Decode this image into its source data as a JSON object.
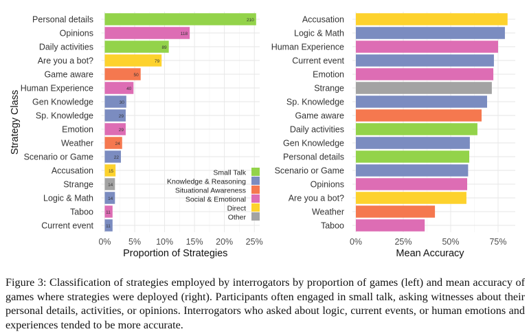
{
  "colors": {
    "Small Talk": "#93d34a",
    "Knowledge & Reasoning": "#7b8cc0",
    "Situational Awareness": "#f5784f",
    "Social & Emotional": "#dd6db4",
    "Direct": "#fdd22d",
    "Other": "#a3a3a3"
  },
  "chart_data": [
    {
      "type": "bar",
      "orientation": "horizontal",
      "title": "",
      "xlabel": "Proportion of Strategies",
      "ylabel": "Strategy Class",
      "xlim": [
        0,
        0.26
      ],
      "xticks": [
        0,
        0.05,
        0.1,
        0.15,
        0.2,
        0.25
      ],
      "xtick_labels": [
        "0%",
        "5%",
        "10%",
        "15%",
        "20%",
        "25%"
      ],
      "grid": true,
      "legend": {
        "placement": "bottom-right",
        "entries": [
          "Small Talk",
          "Knowledge & Reasoning",
          "Situational Awareness",
          "Social & Emotional",
          "Direct",
          "Other"
        ]
      },
      "categories": [
        "Personal details",
        "Opinions",
        "Daily activities",
        "Are you a bot?",
        "Game aware",
        "Human Experience",
        "Gen Knowledge",
        "Sp. Knowledge",
        "Emotion",
        "Weather",
        "Scenario or Game",
        "Accusation",
        "Strange",
        "Logic & Math",
        "Taboo",
        "Current event"
      ],
      "groups": [
        "Small Talk",
        "Social & Emotional",
        "Small Talk",
        "Direct",
        "Situational Awareness",
        "Social & Emotional",
        "Knowledge & Reasoning",
        "Knowledge & Reasoning",
        "Social & Emotional",
        "Situational Awareness",
        "Knowledge & Reasoning",
        "Direct",
        "Other",
        "Knowledge & Reasoning",
        "Social & Emotional",
        "Knowledge & Reasoning"
      ],
      "counts": [
        210,
        118,
        89,
        79,
        50,
        40,
        30,
        29,
        29,
        24,
        22,
        15,
        14,
        14,
        11,
        11
      ],
      "values": [
        0.253,
        0.142,
        0.107,
        0.095,
        0.06,
        0.048,
        0.036,
        0.035,
        0.035,
        0.029,
        0.027,
        0.018,
        0.017,
        0.017,
        0.013,
        0.013
      ]
    },
    {
      "type": "bar",
      "orientation": "horizontal",
      "title": "",
      "xlabel": "Mean Accuracy",
      "ylabel": "",
      "xlim": [
        0,
        0.84
      ],
      "xticks": [
        0,
        0.25,
        0.5,
        0.75
      ],
      "xtick_labels": [
        "0%",
        "25%",
        "50%",
        "75%"
      ],
      "grid": true,
      "categories": [
        "Accusation",
        "Logic & Math",
        "Human Experience",
        "Current event",
        "Emotion",
        "Strange",
        "Sp. Knowledge",
        "Game aware",
        "Daily activities",
        "Gen Knowledge",
        "Personal details",
        "Scenario or Game",
        "Opinions",
        "Are you a bot?",
        "Weather",
        "Taboo"
      ],
      "groups": [
        "Direct",
        "Knowledge & Reasoning",
        "Social & Emotional",
        "Knowledge & Reasoning",
        "Social & Emotional",
        "Other",
        "Knowledge & Reasoning",
        "Situational Awareness",
        "Small Talk",
        "Knowledge & Reasoning",
        "Small Talk",
        "Knowledge & Reasoning",
        "Social & Emotional",
        "Direct",
        "Situational Awareness",
        "Social & Emotional"
      ],
      "values": [
        0.8,
        0.786,
        0.75,
        0.728,
        0.725,
        0.717,
        0.692,
        0.663,
        0.641,
        0.601,
        0.598,
        0.592,
        0.587,
        0.583,
        0.417,
        0.363
      ]
    }
  ],
  "caption": "Figure 3: Classification of strategies employed by interrogators by proportion of games (left) and mean accuracy of games where strategies were deployed (right). Participants often engaged in small talk, asking witnesses about their personal details, activities, or opinions. Interrogators who asked about logic, current events, or human emotions and experiences tended to be more accurate."
}
